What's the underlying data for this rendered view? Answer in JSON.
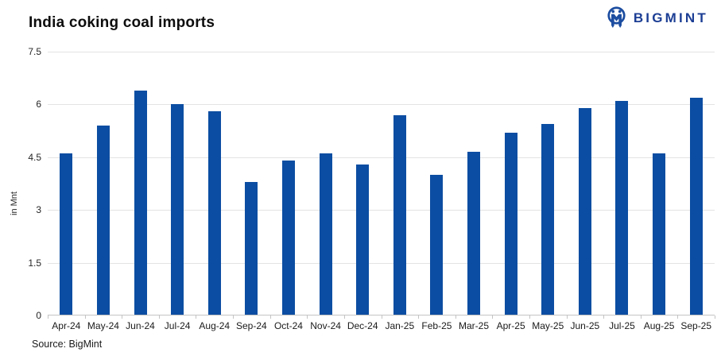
{
  "header": {
    "title": "India coking coal imports",
    "brand": "BIGMINT"
  },
  "chart_data": {
    "type": "bar",
    "title": "India coking coal imports",
    "xlabel": "",
    "ylabel": "in Mnt",
    "ylim": [
      0,
      7.5
    ],
    "yticks": [
      0,
      1.5,
      3,
      4.5,
      6,
      7.5
    ],
    "grid": true,
    "legend": false,
    "bar_color": "#0b4da2",
    "categories": [
      "Apr-24",
      "May-24",
      "Jun-24",
      "Jul-24",
      "Aug-24",
      "Sep-24",
      "Oct-24",
      "Nov-24",
      "Dec-24",
      "Jan-25",
      "Feb-25",
      "Mar-25",
      "Apr-25",
      "May-25",
      "Jun-25",
      "Jul-25",
      "Aug-25",
      "Sep-25"
    ],
    "values": [
      4.6,
      5.4,
      6.4,
      6.0,
      5.8,
      3.8,
      4.4,
      4.6,
      4.3,
      5.7,
      4.0,
      4.65,
      5.2,
      5.45,
      5.9,
      6.1,
      4.6,
      6.2
    ]
  },
  "footer": {
    "source": "Source: BigMint"
  },
  "colors": {
    "bar": "#0b4da2",
    "brand": "#1c3e94",
    "grid": "#e3e3e3",
    "axis": "#c4c4c4",
    "text": "#1a1a1a"
  }
}
